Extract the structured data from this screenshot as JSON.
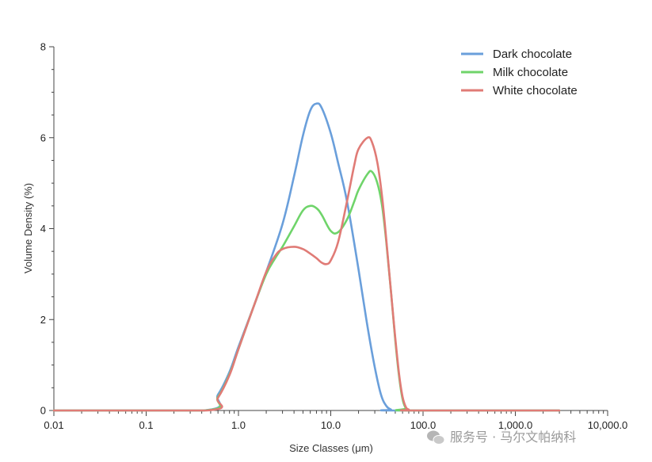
{
  "chart_data": {
    "type": "line",
    "title": "",
    "xlabel": "Size Classes (μm)",
    "ylabel": "Volume Density (%)",
    "x_scale": "log",
    "xlim": [
      0.01,
      10000
    ],
    "ylim": [
      0,
      8
    ],
    "x_ticks": [
      0.01,
      0.1,
      1,
      10,
      100,
      1000,
      10000
    ],
    "x_tick_labels": [
      "0.01",
      "0.1",
      "1.0",
      "10.0",
      "100.0",
      "1,000.0",
      "10,000.0"
    ],
    "y_ticks": [
      0,
      2,
      4,
      6,
      8
    ],
    "y_tick_labels": [
      "0",
      "2",
      "4",
      "6",
      "8"
    ],
    "grid": false,
    "legend_position": "top-right",
    "series": [
      {
        "name": "Dark chocolate",
        "color": "#6a9fdb",
        "x": [
          0.01,
          0.42,
          0.6,
          0.8,
          1.0,
          1.5,
          2.0,
          3.0,
          4.0,
          5.0,
          6.0,
          7.0,
          8.0,
          10.0,
          12.0,
          15.0,
          20.0,
          25.0,
          30.0,
          35.0,
          40.0,
          45.0,
          50.0,
          3000
        ],
        "values": [
          0,
          0,
          0.35,
          0.85,
          1.4,
          2.35,
          3.05,
          4.1,
          5.15,
          6.05,
          6.6,
          6.75,
          6.65,
          6.1,
          5.45,
          4.6,
          3.1,
          1.85,
          0.95,
          0.35,
          0.1,
          0.02,
          0,
          0
        ]
      },
      {
        "name": "Milk chocolate",
        "color": "#6fd46a",
        "x": [
          0.01,
          0.42,
          0.6,
          0.8,
          1.0,
          1.5,
          2.0,
          2.5,
          3.0,
          4.0,
          5.0,
          6.0,
          7.0,
          8.0,
          10.0,
          12.0,
          15.0,
          18.0,
          20.0,
          25.0,
          28.0,
          32.0,
          36.0,
          40.0,
          45.0,
          50.0,
          55.0,
          60.0,
          65.0,
          70.0,
          3000
        ],
        "values": [
          0,
          0,
          0.3,
          0.8,
          1.35,
          2.35,
          3.0,
          3.35,
          3.6,
          4.05,
          4.4,
          4.5,
          4.45,
          4.3,
          3.95,
          3.92,
          4.2,
          4.6,
          4.85,
          5.2,
          5.25,
          5.0,
          4.5,
          3.7,
          2.6,
          1.55,
          0.75,
          0.25,
          0.05,
          0,
          0
        ]
      },
      {
        "name": "White chocolate",
        "color": "#e07b76",
        "x": [
          0.01,
          0.45,
          0.6,
          0.8,
          1.0,
          1.5,
          2.0,
          2.5,
          3.0,
          4.0,
          5.0,
          6.0,
          7.0,
          8.0,
          9.0,
          10.0,
          12.0,
          15.0,
          18.0,
          20.0,
          25.0,
          28.0,
          32.0,
          36.0,
          40.0,
          45.0,
          50.0,
          55.0,
          60.0,
          65.0,
          70.0,
          80.0,
          3000
        ],
        "values": [
          0,
          0,
          0.28,
          0.78,
          1.35,
          2.35,
          3.05,
          3.4,
          3.55,
          3.6,
          3.55,
          3.45,
          3.35,
          3.25,
          3.22,
          3.3,
          3.7,
          4.6,
          5.4,
          5.75,
          6.0,
          5.9,
          5.45,
          4.7,
          3.75,
          2.6,
          1.6,
          0.8,
          0.3,
          0.08,
          0.02,
          0,
          0
        ]
      }
    ]
  },
  "watermark": {
    "text": "服务号 · 马尔文帕纳科",
    "icon": "wechat-icon"
  }
}
